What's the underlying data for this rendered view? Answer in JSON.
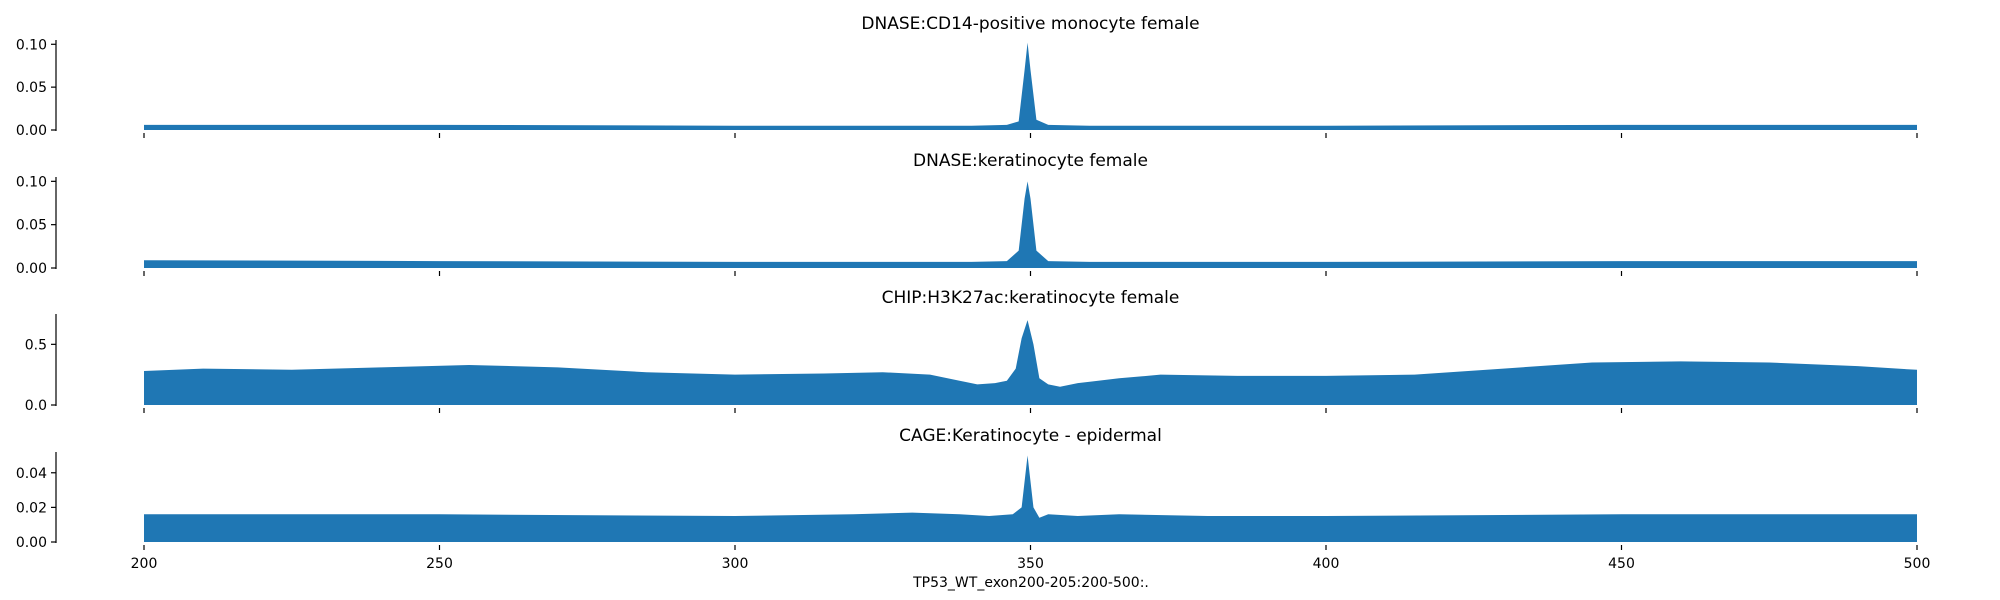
{
  "chart_data": {
    "type": "area",
    "xlabel": "TP53_WT_exon200-205:200-500:.",
    "xlim": [
      200,
      500
    ],
    "x_ticks": [
      200,
      250,
      300,
      350,
      400,
      450,
      500
    ],
    "x_tick_labels": [
      "200",
      "250",
      "300",
      "350",
      "400",
      "450",
      "500"
    ],
    "color": "#1f77b4",
    "panels": [
      {
        "title": "DNASE:CD14-positive monocyte female",
        "ylim": [
          0,
          0.105
        ],
        "y_ticks": [
          0.0,
          0.05,
          0.1
        ],
        "y_tick_labels": [
          "0.00",
          "0.05",
          "0.10"
        ],
        "x_tick_labels_shown": false,
        "series": {
          "x": [
            200,
            250,
            300,
            320,
            340,
            346,
            348,
            349,
            349.5,
            350,
            351,
            353,
            360,
            400,
            450,
            500
          ],
          "y": [
            0.006,
            0.006,
            0.005,
            0.005,
            0.005,
            0.006,
            0.01,
            0.07,
            0.102,
            0.07,
            0.012,
            0.006,
            0.005,
            0.005,
            0.006,
            0.006
          ]
        }
      },
      {
        "title": "DNASE:keratinocyte female",
        "ylim": [
          0,
          0.105
        ],
        "y_ticks": [
          0.0,
          0.05,
          0.1
        ],
        "y_tick_labels": [
          "0.00",
          "0.05",
          "0.10"
        ],
        "x_tick_labels_shown": false,
        "series": {
          "x": [
            200,
            250,
            300,
            320,
            340,
            346,
            348,
            349,
            349.5,
            350,
            351,
            353,
            360,
            400,
            450,
            500
          ],
          "y": [
            0.009,
            0.008,
            0.007,
            0.007,
            0.007,
            0.008,
            0.02,
            0.08,
            0.1,
            0.08,
            0.02,
            0.008,
            0.007,
            0.007,
            0.008,
            0.008
          ]
        }
      },
      {
        "title": "CHIP:H3K27ac:keratinocyte female",
        "ylim": [
          0,
          0.75
        ],
        "y_ticks": [
          0.0,
          0.5
        ],
        "y_tick_labels": [
          "0.0",
          "0.5"
        ],
        "x_tick_labels_shown": false,
        "series": {
          "x": [
            200,
            210,
            225,
            240,
            255,
            270,
            285,
            300,
            315,
            325,
            333,
            338,
            341,
            344,
            346,
            347.5,
            348.5,
            349.5,
            350.5,
            351.5,
            353,
            355,
            358,
            365,
            372,
            385,
            400,
            415,
            430,
            445,
            460,
            475,
            490,
            500
          ],
          "y": [
            0.28,
            0.3,
            0.29,
            0.31,
            0.33,
            0.31,
            0.27,
            0.25,
            0.26,
            0.27,
            0.25,
            0.2,
            0.17,
            0.18,
            0.2,
            0.3,
            0.55,
            0.7,
            0.5,
            0.22,
            0.17,
            0.15,
            0.18,
            0.22,
            0.25,
            0.24,
            0.24,
            0.25,
            0.3,
            0.35,
            0.36,
            0.35,
            0.32,
            0.29
          ]
        }
      },
      {
        "title": "CAGE:Keratinocyte - epidermal",
        "ylim": [
          0,
          0.052
        ],
        "y_ticks": [
          0.0,
          0.02,
          0.04
        ],
        "y_tick_labels": [
          "0.00",
          "0.02",
          "0.04"
        ],
        "x_tick_labels_shown": true,
        "series": {
          "x": [
            200,
            250,
            300,
            320,
            330,
            338,
            343,
            347,
            348.5,
            349.5,
            350.5,
            351.5,
            353,
            358,
            365,
            380,
            400,
            450,
            500
          ],
          "y": [
            0.016,
            0.016,
            0.015,
            0.016,
            0.017,
            0.016,
            0.015,
            0.016,
            0.02,
            0.05,
            0.02,
            0.014,
            0.016,
            0.015,
            0.016,
            0.015,
            0.015,
            0.016,
            0.016
          ]
        }
      }
    ]
  }
}
